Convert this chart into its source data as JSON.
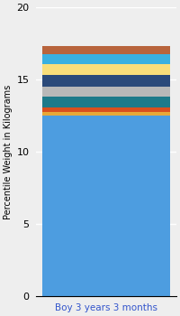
{
  "category": "Boy 3 years 3 months",
  "ylabel": "Percentile Weight in Kilograms",
  "ylim": [
    0,
    20
  ],
  "yticks": [
    0,
    5,
    10,
    15,
    20
  ],
  "segments": [
    {
      "value": 12.5,
      "color": "#4d9de0"
    },
    {
      "value": 0.25,
      "color": "#e8a838"
    },
    {
      "value": 0.35,
      "color": "#d94f1e"
    },
    {
      "value": 0.7,
      "color": "#1d7a8a"
    },
    {
      "value": 0.7,
      "color": "#b8b8b8"
    },
    {
      "value": 0.85,
      "color": "#2b4a7a"
    },
    {
      "value": 0.75,
      "color": "#f9de7a"
    },
    {
      "value": 0.65,
      "color": "#3ab0e0"
    },
    {
      "value": 0.55,
      "color": "#b8643c"
    }
  ],
  "bg_color": "#eeeeee",
  "bar_width": 0.5,
  "ylabel_fontsize": 7,
  "tick_fontsize": 8,
  "xtick_fontsize": 7.5,
  "xtick_color": "#3355cc",
  "grid_color": "#ffffff",
  "figsize": [
    2.0,
    3.5
  ],
  "dpi": 100
}
